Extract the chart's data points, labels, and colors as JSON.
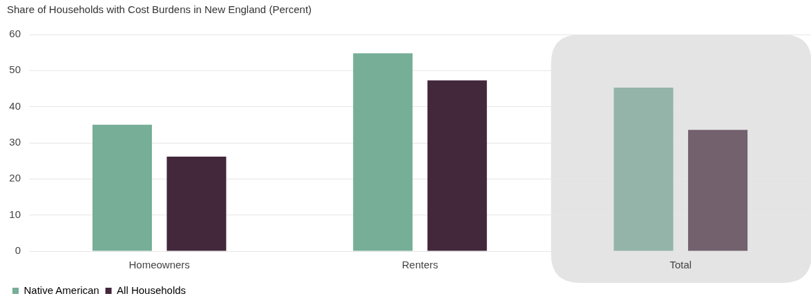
{
  "chart_data": {
    "type": "bar",
    "title": "Share of Households with Cost Burdens in New England (Percent)",
    "categories": [
      "Homeowners",
      "Renters",
      "Total"
    ],
    "series": [
      {
        "name": "Native American",
        "color": "#76ae97",
        "colors": [
          "#76ae97",
          "#76ae97",
          "#94b4a9"
        ],
        "values": [
          35.0,
          54.8,
          45.3
        ]
      },
      {
        "name": "All Households",
        "color": "#43273b",
        "colors": [
          "#43273b",
          "#43273b",
          "#73616d"
        ],
        "values": [
          26.2,
          47.3,
          33.6
        ]
      }
    ],
    "ylim": [
      0,
      60
    ],
    "yticks": [
      0,
      10,
      20,
      30,
      40,
      50,
      60
    ],
    "grid": "y",
    "legend": "bottom left",
    "bands": [
      {
        "axis": "x",
        "from": "Total",
        "to": "Total",
        "color": "#e4e4e4"
      }
    ]
  }
}
